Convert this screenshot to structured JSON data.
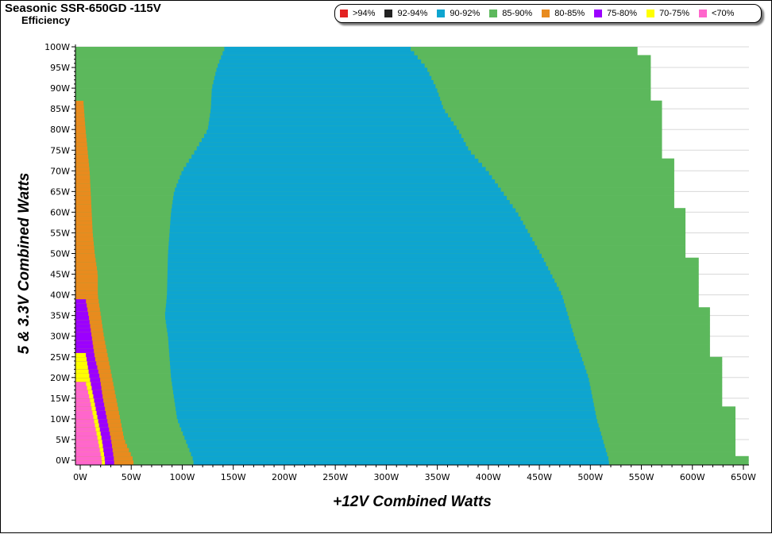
{
  "title": "Seasonic SSR-650GD -115V",
  "subtitle": "Efficiency",
  "chart_data": {
    "type": "heatmap",
    "title": "Seasonic SSR-650GD -115V",
    "subtitle": "Efficiency",
    "xlabel": "+12V Combined Watts",
    "ylabel": "5 & 3.3V Combined Watts",
    "xlim": [
      0,
      650
    ],
    "ylim": [
      0,
      100
    ],
    "x_ticks": [
      "0W",
      "50W",
      "100W",
      "150W",
      "200W",
      "250W",
      "300W",
      "350W",
      "400W",
      "450W",
      "500W",
      "550W",
      "600W",
      "650W"
    ],
    "y_ticks": [
      "0W",
      "5W",
      "10W",
      "15W",
      "20W",
      "25W",
      "30W",
      "35W",
      "40W",
      "45W",
      "50W",
      "55W",
      "60W",
      "65W",
      "70W",
      "75W",
      "80W",
      "85W",
      "90W",
      "95W",
      "100W"
    ],
    "legend": [
      {
        "label": ">94%",
        "color": "#e32222"
      },
      {
        "label": "92-94%",
        "color": "#222222"
      },
      {
        "label": "90-92%",
        "color": "#0ea5d0"
      },
      {
        "label": "85-90%",
        "color": "#5cb85c"
      },
      {
        "label": "80-85%",
        "color": "#e88b1e"
      },
      {
        "label": "75-80%",
        "color": "#9b00ff"
      },
      {
        "label": "70-75%",
        "color": "#ffff00"
      },
      {
        "label": "<70%",
        "color": "#ff66cc"
      }
    ],
    "legend_position": "top-right",
    "region_boundaries_note": "12V watts at which each band ends, per 5&3.3V watt level",
    "max_load_edge": [
      [
        0,
        655
      ],
      [
        1,
        642
      ],
      [
        13,
        629
      ],
      [
        25,
        617
      ],
      [
        37,
        606
      ],
      [
        49,
        593
      ],
      [
        61,
        582
      ],
      [
        73,
        570
      ],
      [
        87,
        559
      ],
      [
        98.5,
        546
      ]
    ],
    "band_90_92_left": [
      [
        0,
        111
      ],
      [
        5,
        103
      ],
      [
        10,
        95
      ],
      [
        15,
        92
      ],
      [
        20,
        89
      ],
      [
        30,
        86
      ],
      [
        35,
        83
      ],
      [
        40,
        85
      ],
      [
        50,
        86
      ],
      [
        60,
        89
      ],
      [
        65,
        92
      ],
      [
        70,
        100
      ],
      [
        75,
        113
      ],
      [
        80,
        125
      ],
      [
        85,
        128
      ],
      [
        90,
        129
      ],
      [
        95,
        134
      ],
      [
        100,
        142
      ]
    ],
    "band_90_92_right": [
      [
        0,
        518
      ],
      [
        10,
        506
      ],
      [
        20,
        498
      ],
      [
        30,
        484
      ],
      [
        40,
        472
      ],
      [
        50,
        451
      ],
      [
        60,
        428
      ],
      [
        70,
        399
      ],
      [
        75,
        381
      ],
      [
        80,
        370
      ],
      [
        85,
        356
      ],
      [
        90,
        349
      ],
      [
        95,
        339
      ],
      [
        100,
        322
      ]
    ],
    "band_80_85_right": [
      [
        0,
        52
      ],
      [
        5,
        43
      ],
      [
        10,
        39
      ],
      [
        15,
        35
      ],
      [
        20,
        31
      ],
      [
        25,
        27
      ],
      [
        30,
        23
      ],
      [
        35,
        20
      ],
      [
        40,
        17
      ],
      [
        45,
        17
      ],
      [
        50,
        14
      ],
      [
        55,
        12
      ],
      [
        60,
        11
      ],
      [
        70,
        9
      ],
      [
        80,
        5
      ],
      [
        86.5,
        3
      ]
    ],
    "band_75_80_right": [
      [
        0,
        33
      ],
      [
        5,
        30
      ],
      [
        10,
        26
      ],
      [
        15,
        22
      ],
      [
        20,
        19
      ],
      [
        25,
        14
      ],
      [
        30,
        11
      ],
      [
        35,
        8
      ],
      [
        39,
        5
      ]
    ],
    "band_70_75_right": [
      [
        0,
        24
      ],
      [
        5,
        21
      ],
      [
        10,
        17
      ],
      [
        15,
        13
      ],
      [
        20,
        9
      ],
      [
        26,
        5
      ]
    ],
    "band_lt70_right": [
      [
        0,
        21
      ],
      [
        5,
        17
      ],
      [
        10,
        13
      ],
      [
        15,
        9
      ],
      [
        19,
        5
      ]
    ]
  }
}
